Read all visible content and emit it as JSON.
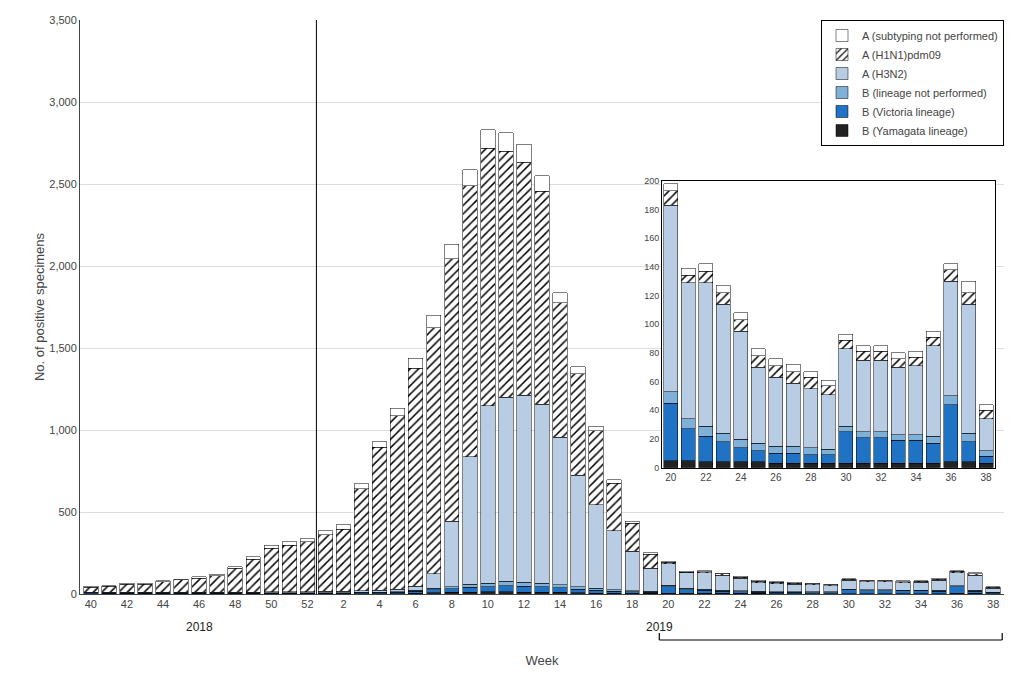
{
  "chart_data": [
    {
      "type": "bar",
      "stacked": true,
      "xlabel": "Week",
      "ylabel": "No. of positive specimens",
      "categories": [
        "40",
        null,
        "42",
        null,
        "44",
        null,
        "46",
        null,
        "48",
        null,
        "50",
        null,
        "52",
        null,
        "2",
        null,
        "4",
        null,
        "6",
        null,
        "8",
        null,
        "10",
        null,
        "12",
        null,
        "14",
        null,
        "16",
        null,
        "18",
        null,
        "20",
        null,
        "22",
        null,
        "24",
        null,
        "26",
        null,
        "28",
        null,
        "30",
        null,
        "32",
        null,
        "34",
        null,
        "36",
        null,
        "38"
      ],
      "series": [
        {
          "name": "B (Yamagata lineage)",
          "color": "#222222",
          "values": [
            3,
            2,
            2,
            2,
            2,
            2,
            2,
            2,
            2,
            2,
            2,
            2,
            2,
            2,
            2,
            3,
            3,
            3,
            6,
            8,
            10,
            12,
            13,
            13,
            12,
            12,
            10,
            8,
            6,
            5,
            5,
            4,
            5,
            5,
            4,
            4,
            4,
            4,
            3,
            3,
            3,
            3,
            3,
            3,
            3,
            3,
            3,
            3,
            4,
            4,
            3
          ]
        },
        {
          "name": "B (Victoria lineage)",
          "color": "#1f72c4",
          "values": [
            4,
            4,
            4,
            4,
            4,
            4,
            4,
            4,
            4,
            4,
            4,
            4,
            4,
            4,
            4,
            5,
            6,
            7,
            12,
            18,
            22,
            28,
            32,
            38,
            35,
            32,
            28,
            22,
            18,
            13,
            10,
            8,
            40,
            22,
            18,
            14,
            10,
            8,
            7,
            7,
            6,
            6,
            22,
            18,
            18,
            16,
            16,
            14,
            40,
            14,
            5
          ]
        },
        {
          "name": "B (lineage not performed)",
          "color": "#7eb0d8",
          "values": [
            2,
            2,
            2,
            2,
            2,
            2,
            2,
            2,
            2,
            2,
            2,
            2,
            2,
            2,
            2,
            3,
            3,
            3,
            5,
            8,
            12,
            18,
            22,
            28,
            25,
            22,
            18,
            13,
            10,
            8,
            6,
            5,
            8,
            7,
            7,
            6,
            6,
            5,
            5,
            5,
            5,
            4,
            4,
            4,
            4,
            4,
            4,
            5,
            6,
            6,
            4
          ]
        },
        {
          "name": "A (H3N2)",
          "color": "#b8cce4",
          "values": [
            3,
            3,
            3,
            3,
            3,
            3,
            3,
            3,
            3,
            3,
            5,
            5,
            5,
            8,
            8,
            10,
            12,
            15,
            25,
            90,
            400,
            780,
            1080,
            1120,
            1140,
            1090,
            900,
            680,
            510,
            360,
            240,
            140,
            130,
            95,
            100,
            90,
            75,
            53,
            48,
            44,
            41,
            38,
            54,
            50,
            50,
            47,
            48,
            63,
            80,
            90,
            22
          ]
        },
        {
          "name": "A (H1N1)pdm09",
          "color": "#ffffff",
          "marker": "hatch",
          "values": [
            30,
            35,
            50,
            50,
            65,
            75,
            85,
            100,
            145,
            200,
            265,
            285,
            305,
            345,
            380,
            620,
            870,
            1060,
            1330,
            1500,
            1600,
            1650,
            1570,
            1500,
            1420,
            1300,
            820,
            620,
            450,
            290,
            170,
            85,
            10,
            5,
            8,
            8,
            8,
            8,
            8,
            8,
            8,
            6,
            6,
            6,
            6,
            6,
            6,
            6,
            8,
            8,
            6
          ]
        },
        {
          "name": "A (subtyping not performed)",
          "color": "#ffffff",
          "values": [
            5,
            5,
            5,
            5,
            5,
            5,
            8,
            8,
            10,
            15,
            20,
            20,
            20,
            25,
            25,
            30,
            35,
            45,
            60,
            75,
            90,
            100,
            115,
            115,
            110,
            95,
            60,
            42,
            30,
            20,
            14,
            10,
            5,
            5,
            5,
            5,
            5,
            5,
            5,
            5,
            4,
            4,
            4,
            4,
            4,
            4,
            4,
            4,
            4,
            8,
            4
          ]
        }
      ],
      "ylim": [
        0,
        3500
      ],
      "yticks": [
        0,
        500,
        {
          "value": 1000,
          "label": "1,000"
        },
        {
          "value": 1500,
          "label": "1,500"
        },
        {
          "value": 2000,
          "label": "2,000"
        },
        {
          "value": 2500,
          "label": "2,500"
        },
        {
          "value": 3000,
          "label": "3,000"
        },
        {
          "value": 3500,
          "label": "3,500"
        }
      ],
      "grid": true,
      "legend": "upper right",
      "annotations": [
        {
          "text": "2018",
          "x": [
            0,
            12
          ]
        },
        {
          "text": "2019",
          "x": [
            13,
            50
          ]
        }
      ]
    },
    {
      "type": "bar",
      "stacked": true,
      "categories": [
        "20",
        null,
        "22",
        null,
        "24",
        null,
        "26",
        null,
        "28",
        null,
        "30",
        null,
        "32",
        null,
        "34",
        null,
        "36",
        null,
        "38"
      ],
      "series": [
        {
          "color": "#222222",
          "values": [
            5,
            5,
            4,
            4,
            4,
            4,
            3,
            3,
            3,
            3,
            3,
            3,
            3,
            3,
            3,
            3,
            4,
            4,
            3
          ]
        },
        {
          "color": "#1f72c4",
          "values": [
            40,
            22,
            18,
            14,
            10,
            8,
            7,
            7,
            6,
            6,
            22,
            18,
            18,
            16,
            16,
            14,
            40,
            14,
            5
          ]
        },
        {
          "color": "#7eb0d8",
          "values": [
            8,
            7,
            7,
            6,
            6,
            5,
            5,
            5,
            5,
            4,
            4,
            4,
            4,
            4,
            4,
            5,
            6,
            6,
            4
          ]
        },
        {
          "color": "#b8cce4",
          "values": [
            130,
            95,
            100,
            90,
            75,
            53,
            48,
            44,
            41,
            38,
            54,
            50,
            50,
            47,
            48,
            63,
            80,
            90,
            22
          ]
        },
        {
          "color": "#ffffff",
          "marker": "hatch",
          "values": [
            10,
            5,
            8,
            8,
            8,
            8,
            8,
            8,
            8,
            6,
            6,
            6,
            6,
            6,
            6,
            6,
            8,
            8,
            6
          ]
        },
        {
          "color": "#ffffff",
          "values": [
            5,
            5,
            5,
            5,
            5,
            5,
            5,
            5,
            4,
            4,
            4,
            4,
            4,
            4,
            4,
            4,
            4,
            8,
            4
          ]
        }
      ],
      "ylim": [
        0,
        200
      ],
      "yticks": [
        0,
        20,
        40,
        60,
        80,
        100,
        120,
        140,
        160,
        180,
        200
      ],
      "grid": false
    }
  ]
}
